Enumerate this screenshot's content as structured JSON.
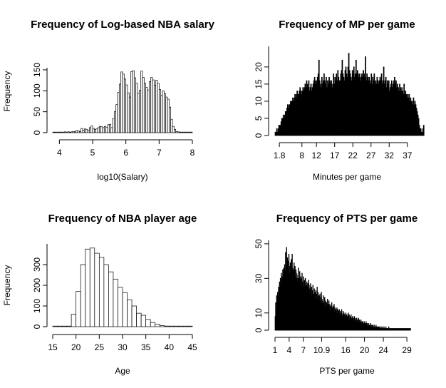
{
  "chart_data": [
    {
      "type": "bar",
      "title": "Frequency of Log-based NBA salary",
      "xlabel": "log10(Salary)",
      "ylabel": "Frequency",
      "xlim": [
        3.8,
        8.0
      ],
      "ylim": [
        0,
        155
      ],
      "xticks": [
        4,
        5,
        6,
        7,
        8
      ],
      "xtick_labels": [
        "4",
        "5",
        "6",
        "7",
        "8"
      ],
      "yticks": [
        0,
        50,
        100,
        150
      ],
      "ytick_labels": [
        "0",
        "50",
        "100",
        "150"
      ],
      "bin_start": 3.8,
      "bin_width": 0.05,
      "values": [
        1,
        0,
        1,
        1,
        1,
        1,
        1,
        2,
        1,
        2,
        1,
        2,
        3,
        2,
        5,
        4,
        3,
        10,
        6,
        9,
        8,
        5,
        12,
        16,
        10,
        8,
        9,
        12,
        15,
        14,
        12,
        15,
        13,
        19,
        20,
        12,
        34,
        50,
        67,
        96,
        116,
        145,
        140,
        128,
        114,
        95,
        85,
        146,
        148,
        131,
        118,
        94,
        101,
        147,
        132,
        118,
        108,
        102,
        122,
        132,
        126,
        113,
        125,
        118,
        103,
        89,
        100,
        93,
        85,
        80,
        61,
        32,
        15,
        8,
        3,
        2,
        1,
        1,
        0,
        0,
        0,
        0,
        0,
        0
      ]
    },
    {
      "type": "bar",
      "title": "Frequency of MP per game",
      "xlabel": "Minutes per game",
      "ylabel": "",
      "xlim": [
        0.6,
        39.2
      ],
      "ylim": [
        0,
        26
      ],
      "xticks": [
        1.8,
        8,
        12,
        17,
        22,
        27,
        32,
        37
      ],
      "xtick_labels": [
        "1.8",
        "8",
        "12",
        "17",
        "22",
        "27",
        "32",
        "37"
      ],
      "yticks": [
        0,
        5,
        10,
        15,
        20
      ],
      "ytick_labels": [
        "0",
        "5",
        "10",
        "15",
        "20"
      ],
      "bin_start": 0.6,
      "bin_width": 0.2,
      "values": [
        1,
        1,
        2,
        1,
        2,
        3,
        3,
        3,
        4,
        5,
        5,
        6,
        5,
        6,
        7,
        7,
        8,
        9,
        8,
        9,
        9,
        10,
        10,
        10,
        11,
        10,
        11,
        12,
        11,
        12,
        13,
        12,
        12,
        13,
        14,
        13,
        12,
        13,
        14,
        13,
        14,
        15,
        14,
        16,
        15,
        14,
        16,
        13,
        14,
        15,
        13,
        14,
        15,
        16,
        17,
        16,
        15,
        16,
        17,
        18,
        22,
        16,
        15,
        14,
        17,
        15,
        16,
        18,
        16,
        15,
        17,
        14,
        16,
        15,
        17,
        16,
        15,
        16,
        14,
        15,
        18,
        15,
        17,
        16,
        18,
        16,
        19,
        17,
        16,
        16,
        18,
        19,
        22,
        18,
        17,
        16,
        19,
        20,
        18,
        17,
        20,
        24,
        19,
        18,
        17,
        16,
        19,
        18,
        20,
        17,
        18,
        22,
        18,
        19,
        18,
        17,
        18,
        16,
        17,
        18,
        17,
        19,
        18,
        17,
        23,
        16,
        18,
        17,
        16,
        17,
        15,
        16,
        18,
        15,
        17,
        16,
        18,
        15,
        16,
        15,
        17,
        16,
        15,
        16,
        17,
        16,
        18,
        15,
        16,
        20,
        15,
        16,
        17,
        14,
        16,
        15,
        16,
        13,
        14,
        15,
        16,
        14,
        15,
        16,
        17,
        15,
        16,
        14,
        15,
        14,
        13,
        15,
        14,
        13,
        14,
        13,
        12,
        15,
        12,
        13,
        12,
        11,
        12,
        11,
        12,
        10,
        11,
        10,
        10,
        9,
        11,
        9,
        10,
        9,
        8,
        7,
        6,
        5,
        3,
        2,
        2,
        1,
        1,
        2,
        3
      ]
    },
    {
      "type": "bar",
      "title": "Frequency of NBA player age",
      "xlabel": "Age",
      "ylabel": "Frequency",
      "xlim": [
        15,
        45
      ],
      "ylim": [
        0,
        400
      ],
      "xticks": [
        15,
        20,
        25,
        30,
        35,
        40,
        45
      ],
      "xtick_labels": [
        "15",
        "20",
        "25",
        "30",
        "35",
        "40",
        "45"
      ],
      "yticks": [
        0,
        100,
        200,
        300
      ],
      "ytick_labels": [
        "0",
        "100",
        "200",
        "300"
      ],
      "bin_start": 15,
      "bin_width": 1,
      "values": [
        0,
        0,
        0,
        0,
        60,
        170,
        300,
        375,
        380,
        355,
        335,
        300,
        265,
        230,
        190,
        165,
        130,
        100,
        65,
        55,
        35,
        20,
        12,
        5,
        3,
        2,
        1,
        1,
        0,
        0
      ]
    },
    {
      "type": "bar",
      "title": "Frequency of PTS per game",
      "xlabel": "PTS per game",
      "ylabel": "",
      "xlim": [
        1.0,
        30.8
      ],
      "ylim": [
        0,
        52
      ],
      "xticks": [
        1,
        4,
        7,
        10.9,
        16,
        20,
        24,
        29
      ],
      "xtick_labels": [
        "1",
        "4",
        "7",
        "10.9",
        "16",
        "20",
        "24",
        "29"
      ],
      "yticks": [
        0,
        10,
        30,
        50
      ],
      "ytick_labels": [
        "0",
        "10",
        "30",
        "50"
      ],
      "bin_start": 1.0,
      "bin_width": 0.1,
      "values": [
        8,
        16,
        12,
        20,
        14,
        22,
        19,
        25,
        21,
        28,
        24,
        30,
        26,
        33,
        29,
        31,
        35,
        30,
        36,
        33,
        38,
        34,
        45,
        36,
        48,
        37,
        42,
        35,
        40,
        44,
        37,
        33,
        39,
        35,
        41,
        37,
        44,
        36,
        33,
        35,
        39,
        34,
        37,
        31,
        35,
        33,
        30,
        28,
        32,
        36,
        30,
        27,
        34,
        29,
        31,
        26,
        30,
        33,
        28,
        25,
        31,
        27,
        29,
        24,
        30,
        26,
        22,
        28,
        25,
        27,
        23,
        29,
        26,
        21,
        24,
        27,
        22,
        25,
        20,
        23,
        26,
        21,
        19,
        24,
        22,
        20,
        23,
        18,
        21,
        25,
        19,
        22,
        17,
        20,
        18,
        21,
        16,
        19,
        22,
        17,
        15,
        18,
        20,
        16,
        14,
        19,
        15,
        17,
        13,
        16,
        14,
        18,
        15,
        12,
        17,
        13,
        15,
        11,
        14,
        12,
        16,
        13,
        11,
        14,
        12,
        15,
        10,
        13,
        11,
        12,
        10,
        13,
        9,
        12,
        11,
        10,
        12,
        9,
        11,
        8,
        10,
        12,
        9,
        8,
        11,
        9,
        10,
        8,
        9,
        7,
        10,
        8,
        9,
        7,
        8,
        10,
        7,
        9,
        6,
        8,
        7,
        9,
        6,
        7,
        8,
        6,
        7,
        5,
        8,
        6,
        7,
        5,
        6,
        7,
        5,
        6,
        4,
        7,
        5,
        6,
        4,
        5,
        6,
        4,
        5,
        3,
        5,
        4,
        3,
        5,
        4,
        3,
        4,
        5,
        3,
        4,
        3,
        2,
        4,
        3,
        3,
        2,
        4,
        3,
        2,
        3,
        2,
        3,
        2,
        1,
        3,
        2,
        2,
        1,
        3,
        2,
        1,
        2,
        2,
        1,
        2,
        1,
        2,
        1,
        1,
        2,
        1,
        1,
        2,
        1,
        1,
        2,
        1,
        1,
        1,
        2,
        1,
        1,
        1,
        1,
        1,
        2,
        1,
        1,
        1,
        1,
        1,
        1,
        1,
        1,
        1,
        1,
        1,
        1,
        1,
        1,
        1,
        1,
        1,
        1,
        1,
        1,
        1,
        1,
        1,
        1,
        1,
        1,
        1,
        1,
        1,
        1,
        1,
        1,
        1,
        1,
        1,
        1,
        1,
        1,
        1,
        1,
        1,
        1,
        1,
        1,
        1,
        1
      ]
    }
  ]
}
